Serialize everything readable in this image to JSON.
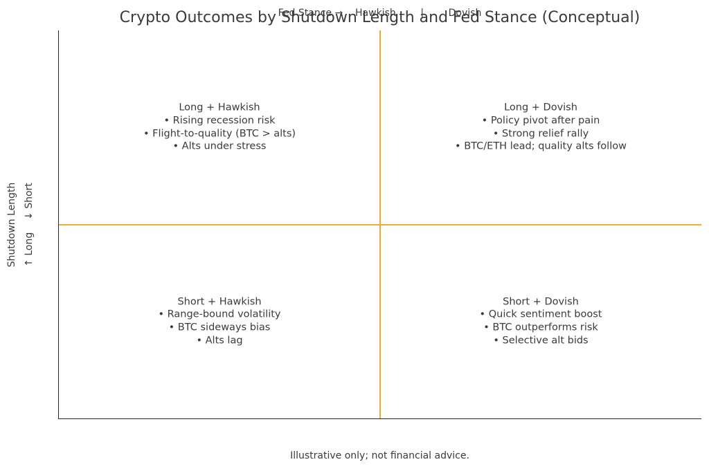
{
  "colors": {
    "divider": "#F0A830",
    "text": "#3A3A3A",
    "spine": "#262626"
  },
  "chart_data": {
    "type": "table",
    "subtype": "quadrant-matrix",
    "title": "Crypto Outcomes by Shutdown Length and Fed Stance (Conceptual)",
    "x_axis": {
      "label": "Fed Stance",
      "categories": [
        "Hawkish",
        "Dovish"
      ],
      "display": "Fed Stance →    Hawkish        |        Dovish",
      "position": "top"
    },
    "y_axis": {
      "label": "Shutdown Length",
      "categories": [
        "Long",
        "Short"
      ],
      "display_line1": "Shutdown Length",
      "display_line2": "↑ Long    ↓ Short"
    },
    "divider_color": "#F0A830",
    "grid": false,
    "legend": false,
    "quadrants": [
      {
        "position": "top-left",
        "x": "Hawkish",
        "y": "Long",
        "heading": "Long + Hawkish",
        "bullets": [
          "Rising recession risk",
          "Flight-to-quality (BTC > alts)",
          "Alts under stress"
        ]
      },
      {
        "position": "top-right",
        "x": "Dovish",
        "y": "Long",
        "heading": "Long + Dovish",
        "bullets": [
          "Policy pivot after pain",
          "Strong relief rally",
          "BTC/ETH lead; quality alts follow"
        ]
      },
      {
        "position": "bottom-left",
        "x": "Hawkish",
        "y": "Short",
        "heading": "Short + Hawkish",
        "bullets": [
          "Range-bound volatility",
          "BTC sideways bias",
          "Alts lag"
        ]
      },
      {
        "position": "bottom-right",
        "x": "Dovish",
        "y": "Short",
        "heading": "Short + Dovish",
        "bullets": [
          "Quick sentiment boost",
          "BTC outperforms risk",
          "Selective alt bids"
        ]
      }
    ],
    "caption": "Illustrative only; not financial advice."
  }
}
